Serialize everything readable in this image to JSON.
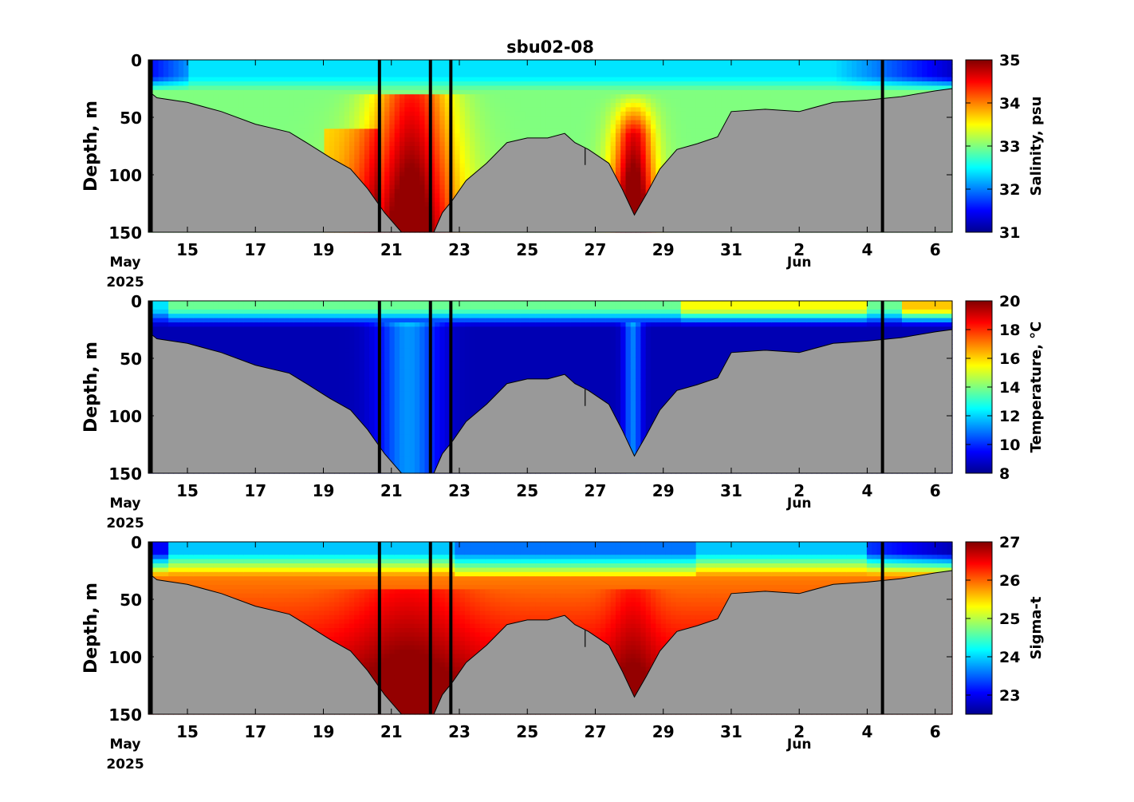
{
  "figure_title": "sbu02-08",
  "chart_data": [
    {
      "type": "heatmap",
      "name": "salinity",
      "title": "sbu02-08",
      "ylabel": "Depth, m",
      "colorbar_label": "Salinity, psu",
      "colorbar_ticks": [
        "31",
        "32",
        "33",
        "34",
        "35"
      ],
      "clim": [
        31,
        35
      ],
      "ylim": [
        0,
        150
      ],
      "y_ticks": [
        "0",
        "50",
        "100",
        "150"
      ],
      "y_tick_values": [
        0,
        50,
        100,
        150
      ],
      "x_start": "2025-05-13",
      "x_ticks": [
        "15",
        "17",
        "19",
        "21",
        "23",
        "25",
        "27",
        "29",
        "31",
        "2",
        "4",
        "6"
      ],
      "x_tick_days": [
        15,
        17,
        19,
        21,
        23,
        25,
        27,
        29,
        31,
        33,
        35,
        37
      ],
      "x_label_month1": "May",
      "x_label_year": "2025",
      "x_label_month2": "Jun"
    },
    {
      "type": "heatmap",
      "name": "temperature",
      "ylabel": "Depth, m",
      "colorbar_label": "Temperature, °C",
      "colorbar_ticks": [
        "8",
        "10",
        "12",
        "14",
        "16",
        "18",
        "20"
      ],
      "clim": [
        8,
        20
      ],
      "ylim": [
        0,
        150
      ],
      "y_ticks": [
        "0",
        "50",
        "100",
        "150"
      ],
      "x_ticks": [
        "15",
        "17",
        "19",
        "21",
        "23",
        "25",
        "27",
        "29",
        "31",
        "2",
        "4",
        "6"
      ],
      "x_label_month1": "May",
      "x_label_year": "2025",
      "x_label_month2": "Jun"
    },
    {
      "type": "heatmap",
      "name": "sigma-t",
      "ylabel": "Depth, m",
      "colorbar_label": "Sigma-t",
      "colorbar_ticks": [
        "23",
        "24",
        "25",
        "26",
        "27"
      ],
      "clim": [
        22.5,
        27
      ],
      "ylim": [
        0,
        150
      ],
      "y_ticks": [
        "0",
        "50",
        "100",
        "150"
      ],
      "x_ticks": [
        "15",
        "17",
        "19",
        "21",
        "23",
        "25",
        "27",
        "29",
        "31",
        "2",
        "4",
        "6"
      ],
      "x_label_month1": "May",
      "x_label_year": "2025",
      "x_label_month2": "Jun"
    }
  ],
  "x_range_days": [
    13.85,
    37.5
  ],
  "bottom_depth_profile": [
    [
      13.85,
      27
    ],
    [
      14.1,
      33
    ],
    [
      15.0,
      37
    ],
    [
      16.0,
      45
    ],
    [
      17.0,
      56
    ],
    [
      18.0,
      63
    ],
    [
      18.5,
      72
    ],
    [
      19.2,
      85
    ],
    [
      19.8,
      95
    ],
    [
      20.3,
      112
    ],
    [
      20.8,
      133
    ],
    [
      21.3,
      150
    ],
    [
      22.25,
      150
    ],
    [
      22.5,
      133
    ],
    [
      22.8,
      122
    ],
    [
      23.2,
      105
    ],
    [
      23.8,
      90
    ],
    [
      24.4,
      72
    ],
    [
      25.0,
      68
    ],
    [
      25.6,
      68
    ],
    [
      26.1,
      64
    ],
    [
      26.4,
      72
    ],
    [
      26.8,
      78
    ],
    [
      27.4,
      90
    ],
    [
      27.8,
      113
    ],
    [
      28.15,
      135
    ],
    [
      28.5,
      117
    ],
    [
      28.9,
      95
    ],
    [
      29.4,
      78
    ],
    [
      30.0,
      73
    ],
    [
      30.6,
      67
    ],
    [
      31.0,
      45
    ],
    [
      32.0,
      43
    ],
    [
      33.0,
      45
    ],
    [
      34.0,
      37
    ],
    [
      35.0,
      35
    ],
    [
      36.0,
      32
    ],
    [
      37.0,
      27
    ],
    [
      37.5,
      25
    ]
  ],
  "vertical_markers_days": [
    13.9,
    20.65,
    22.15,
    22.75,
    35.45
  ],
  "colors": {
    "seafloor": "#999999",
    "marker": "#000000",
    "colormap": "jet"
  }
}
